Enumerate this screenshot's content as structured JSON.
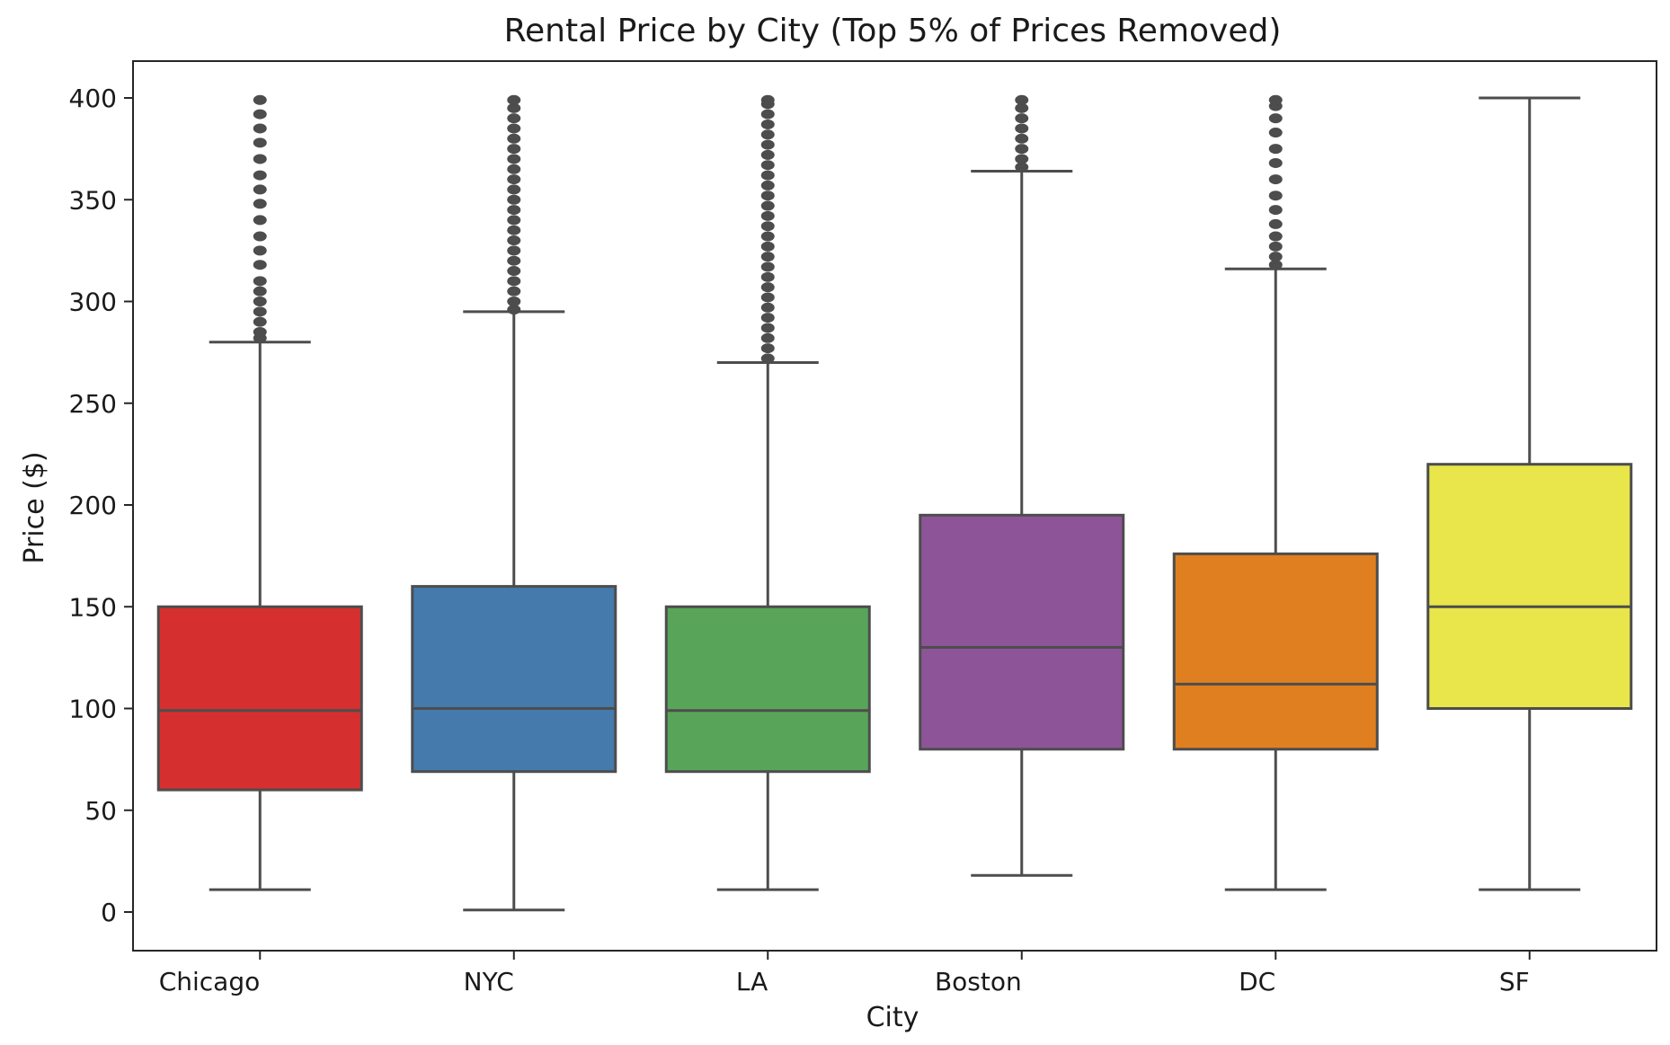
{
  "chart_data": {
    "type": "box",
    "title": "Rental Price by City (Top 5% of Prices Removed)",
    "xlabel": "City",
    "ylabel": "Price ($)",
    "ylim": [
      -20,
      420
    ],
    "yticks": [
      "0",
      "50",
      "100",
      "150",
      "200",
      "250",
      "300",
      "350",
      "400"
    ],
    "grid": false,
    "categories": [
      "Chicago",
      "NYC",
      "LA",
      "Boston",
      "DC",
      "SF"
    ],
    "colors": [
      "#d62f2f",
      "#447aac",
      "#58a55a",
      "#8d5598",
      "#e07f20",
      "#e8e64a"
    ],
    "series": [
      {
        "category": "Chicago",
        "whisker_low": 11,
        "q1": 60,
        "median": 99,
        "q3": 150,
        "whisker_high": 280,
        "outliers": [
          282,
          285,
          290,
          295,
          300,
          305,
          310,
          318,
          325,
          332,
          340,
          348,
          355,
          362,
          370,
          378,
          385,
          392,
          399
        ]
      },
      {
        "category": "NYC",
        "whisker_low": 1,
        "q1": 69,
        "median": 100,
        "q3": 160,
        "whisker_high": 295,
        "outliers": [
          296,
          300,
          305,
          310,
          315,
          320,
          325,
          330,
          335,
          340,
          345,
          350,
          355,
          360,
          365,
          370,
          375,
          380,
          385,
          390,
          395,
          399
        ]
      },
      {
        "category": "LA",
        "whisker_low": 11,
        "q1": 69,
        "median": 99,
        "q3": 150,
        "whisker_high": 270,
        "outliers": [
          272,
          277,
          282,
          287,
          292,
          297,
          302,
          307,
          312,
          317,
          322,
          327,
          332,
          337,
          342,
          347,
          352,
          357,
          362,
          367,
          372,
          377,
          382,
          387,
          392,
          397,
          399
        ]
      },
      {
        "category": "Boston",
        "whisker_low": 18,
        "q1": 80,
        "median": 130,
        "q3": 195,
        "whisker_high": 364,
        "outliers": [
          366,
          370,
          375,
          380,
          385,
          390,
          395,
          399
        ]
      },
      {
        "category": "DC",
        "whisker_low": 11,
        "q1": 80,
        "median": 112,
        "q3": 176,
        "whisker_high": 316,
        "outliers": [
          318,
          322,
          327,
          332,
          338,
          345,
          352,
          360,
          368,
          375,
          383,
          390,
          396,
          399
        ]
      },
      {
        "category": "SF",
        "whisker_low": 11,
        "q1": 100,
        "median": 150,
        "q3": 220,
        "whisker_high": 400,
        "outliers": []
      }
    ]
  }
}
